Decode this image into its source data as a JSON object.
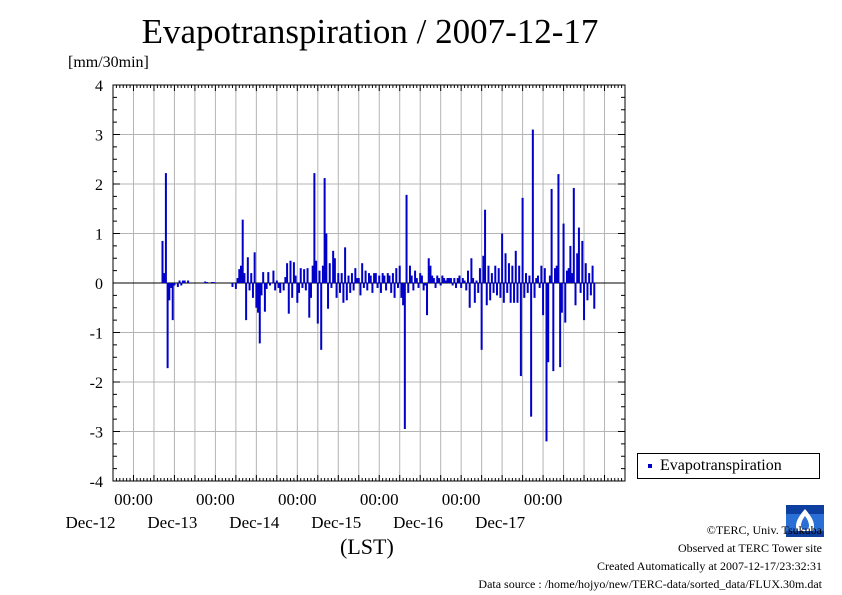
{
  "title": "Evapotranspiration / 2007-12-17",
  "ylabel": "[mm/30min]",
  "xlabel": "(LST)",
  "legend_label": "Evapotranspiration",
  "series_color": "#0000c8",
  "credits": {
    "copyright": "©TERC, Univ. Tsukuba",
    "observed": "Observed at TERC Tower site",
    "created": "Created Automatically at 2007-12-17/23:32:31",
    "source": "Data source : /home/hojyo/new/TERC-data/sorted_data/FLUX.30m.dat"
  },
  "logo_text": "TERC",
  "chart_data": {
    "type": "bar",
    "title": "Evapotranspiration / 2007-12-17",
    "ylabel": "[mm/30min]",
    "xlabel": "(LST)",
    "ylim": [
      -4,
      4
    ],
    "yticks": [
      -4,
      -3,
      -2,
      -1,
      0,
      1,
      2,
      3,
      4
    ],
    "x_start": "2007-12-11T18:00",
    "x_end": "2007-12-17T24:00",
    "x_major_ticks": [
      {
        "time": "2007-12-12T00:00",
        "time_label": "00:00",
        "date_label": "Dec-12"
      },
      {
        "time": "2007-12-13T00:00",
        "time_label": "00:00",
        "date_label": "Dec-13"
      },
      {
        "time": "2007-12-14T00:00",
        "time_label": "00:00",
        "date_label": "Dec-14"
      },
      {
        "time": "2007-12-15T00:00",
        "time_label": "00:00",
        "date_label": "Dec-15"
      },
      {
        "time": "2007-12-16T00:00",
        "time_label": "00:00",
        "date_label": "Dec-16"
      },
      {
        "time": "2007-12-17T00:00",
        "time_label": "00:00",
        "date_label": "Dec-17"
      }
    ],
    "grid": true,
    "legend": "bottom-right",
    "series": [
      {
        "name": "Evapotranspiration",
        "color": "#0000c8",
        "points": [
          [
            "2007-12-12T08:30",
            0.85
          ],
          [
            "2007-12-12T09:00",
            0.2
          ],
          [
            "2007-12-12T09:30",
            2.22
          ],
          [
            "2007-12-12T10:00",
            -1.72
          ],
          [
            "2007-12-12T10:30",
            -0.35
          ],
          [
            "2007-12-12T11:00",
            -0.1
          ],
          [
            "2007-12-12T11:30",
            -0.75
          ],
          [
            "2007-12-12T12:00",
            -0.05
          ],
          [
            "2007-12-12T13:00",
            -0.08
          ],
          [
            "2007-12-12T13:30",
            0.05
          ],
          [
            "2007-12-12T14:00",
            -0.05
          ],
          [
            "2007-12-12T14:30",
            0.05
          ],
          [
            "2007-12-12T15:00",
            0.05
          ],
          [
            "2007-12-12T16:00",
            0.05
          ],
          [
            "2007-12-12T21:00",
            0.03
          ],
          [
            "2007-12-12T21:30",
            0.02
          ],
          [
            "2007-12-12T23:00",
            0.02
          ],
          [
            "2007-12-12T23:30",
            0.02
          ],
          [
            "2007-12-13T05:00",
            -0.08
          ],
          [
            "2007-12-13T06:00",
            -0.12
          ],
          [
            "2007-12-13T06:30",
            0.1
          ],
          [
            "2007-12-13T07:00",
            0.28
          ],
          [
            "2007-12-13T07:30",
            0.35
          ],
          [
            "2007-12-13T08:00",
            1.28
          ],
          [
            "2007-12-13T08:30",
            0.2
          ],
          [
            "2007-12-13T09:00",
            -0.75
          ],
          [
            "2007-12-13T09:30",
            0.52
          ],
          [
            "2007-12-13T10:00",
            -0.15
          ],
          [
            "2007-12-13T10:30",
            0.2
          ],
          [
            "2007-12-13T11:00",
            -0.3
          ],
          [
            "2007-12-13T11:30",
            0.62
          ],
          [
            "2007-12-13T12:00",
            -0.5
          ],
          [
            "2007-12-13T12:30",
            -0.6
          ],
          [
            "2007-12-13T13:00",
            -1.22
          ],
          [
            "2007-12-13T13:30",
            -0.25
          ],
          [
            "2007-12-13T14:00",
            0.22
          ],
          [
            "2007-12-13T14:30",
            -0.58
          ],
          [
            "2007-12-13T15:00",
            -0.12
          ],
          [
            "2007-12-13T15:30",
            0.22
          ],
          [
            "2007-12-13T16:00",
            -0.05
          ],
          [
            "2007-12-13T17:00",
            0.25
          ],
          [
            "2007-12-13T17:30",
            -0.15
          ],
          [
            "2007-12-13T18:00",
            0.05
          ],
          [
            "2007-12-13T18:30",
            -0.1
          ],
          [
            "2007-12-13T19:00",
            -0.2
          ],
          [
            "2007-12-13T20:00",
            -0.15
          ],
          [
            "2007-12-13T20:30",
            0.12
          ],
          [
            "2007-12-13T21:00",
            0.4
          ],
          [
            "2007-12-13T21:30",
            -0.62
          ],
          [
            "2007-12-13T22:00",
            0.45
          ],
          [
            "2007-12-13T22:30",
            -0.3
          ],
          [
            "2007-12-13T23:00",
            0.42
          ],
          [
            "2007-12-13T23:30",
            0.15
          ],
          [
            "2007-12-14T00:00",
            -0.4
          ],
          [
            "2007-12-14T00:30",
            -0.2
          ],
          [
            "2007-12-14T01:00",
            0.3
          ],
          [
            "2007-12-14T01:30",
            -0.1
          ],
          [
            "2007-12-14T02:00",
            0.28
          ],
          [
            "2007-12-14T02:30",
            -0.15
          ],
          [
            "2007-12-14T03:00",
            0.3
          ],
          [
            "2007-12-14T03:30",
            -0.7
          ],
          [
            "2007-12-14T04:00",
            -0.3
          ],
          [
            "2007-12-14T04:30",
            0.35
          ],
          [
            "2007-12-14T05:00",
            2.22
          ],
          [
            "2007-12-14T05:30",
            0.45
          ],
          [
            "2007-12-14T06:00",
            -0.82
          ],
          [
            "2007-12-14T06:30",
            0.25
          ],
          [
            "2007-12-14T07:00",
            -1.35
          ],
          [
            "2007-12-14T07:30",
            0.35
          ],
          [
            "2007-12-14T08:00",
            2.12
          ],
          [
            "2007-12-14T08:30",
            1.0
          ],
          [
            "2007-12-14T09:00",
            -0.52
          ],
          [
            "2007-12-14T09:30",
            0.4
          ],
          [
            "2007-12-14T10:00",
            -0.1
          ],
          [
            "2007-12-14T10:30",
            0.65
          ],
          [
            "2007-12-14T11:00",
            0.5
          ],
          [
            "2007-12-14T11:30",
            -0.3
          ],
          [
            "2007-12-14T12:00",
            0.2
          ],
          [
            "2007-12-14T12:30",
            -0.2
          ],
          [
            "2007-12-14T13:00",
            0.2
          ],
          [
            "2007-12-14T13:30",
            -0.4
          ],
          [
            "2007-12-14T14:00",
            0.72
          ],
          [
            "2007-12-14T14:30",
            -0.35
          ],
          [
            "2007-12-14T15:00",
            0.15
          ],
          [
            "2007-12-14T15:30",
            -0.2
          ],
          [
            "2007-12-14T16:00",
            0.2
          ],
          [
            "2007-12-14T16:30",
            -0.15
          ],
          [
            "2007-12-14T17:00",
            0.3
          ],
          [
            "2007-12-14T17:30",
            0.1
          ],
          [
            "2007-12-14T18:00",
            0.1
          ],
          [
            "2007-12-14T18:30",
            -0.25
          ],
          [
            "2007-12-14T19:00",
            0.4
          ],
          [
            "2007-12-14T19:30",
            -0.1
          ],
          [
            "2007-12-14T20:00",
            0.25
          ],
          [
            "2007-12-14T20:30",
            -0.15
          ],
          [
            "2007-12-14T21:00",
            0.2
          ],
          [
            "2007-12-14T21:30",
            0.15
          ],
          [
            "2007-12-14T22:00",
            -0.2
          ],
          [
            "2007-12-14T22:30",
            0.2
          ],
          [
            "2007-12-14T23:00",
            0.2
          ],
          [
            "2007-12-14T23:30",
            -0.1
          ],
          [
            "2007-12-15T00:00",
            0.15
          ],
          [
            "2007-12-15T00:30",
            -0.2
          ],
          [
            "2007-12-15T01:00",
            0.2
          ],
          [
            "2007-12-15T01:30",
            0.15
          ],
          [
            "2007-12-15T02:00",
            -0.15
          ],
          [
            "2007-12-15T02:30",
            0.2
          ],
          [
            "2007-12-15T03:00",
            0.15
          ],
          [
            "2007-12-15T03:30",
            -0.2
          ],
          [
            "2007-12-15T04:00",
            0.2
          ],
          [
            "2007-12-15T04:30",
            -0.3
          ],
          [
            "2007-12-15T05:00",
            0.3
          ],
          [
            "2007-12-15T05:30",
            -0.1
          ],
          [
            "2007-12-15T06:00",
            0.35
          ],
          [
            "2007-12-15T06:30",
            -0.3
          ],
          [
            "2007-12-15T07:00",
            -0.45
          ],
          [
            "2007-12-15T07:30",
            -2.95
          ],
          [
            "2007-12-15T08:00",
            1.78
          ],
          [
            "2007-12-15T08:30",
            -0.2
          ],
          [
            "2007-12-15T09:00",
            0.35
          ],
          [
            "2007-12-15T09:30",
            0.15
          ],
          [
            "2007-12-15T10:00",
            -0.15
          ],
          [
            "2007-12-15T10:30",
            0.25
          ],
          [
            "2007-12-15T11:00",
            0.1
          ],
          [
            "2007-12-15T11:30",
            -0.1
          ],
          [
            "2007-12-15T12:00",
            0.2
          ],
          [
            "2007-12-15T12:30",
            0.15
          ],
          [
            "2007-12-15T13:00",
            -0.15
          ],
          [
            "2007-12-15T13:30",
            -0.05
          ],
          [
            "2007-12-15T14:00",
            -0.65
          ],
          [
            "2007-12-15T14:30",
            0.5
          ],
          [
            "2007-12-15T15:00",
            0.35
          ],
          [
            "2007-12-15T15:30",
            0.15
          ],
          [
            "2007-12-15T16:00",
            0.1
          ],
          [
            "2007-12-15T16:30",
            -0.1
          ],
          [
            "2007-12-15T17:00",
            0.15
          ],
          [
            "2007-12-15T17:30",
            0.1
          ],
          [
            "2007-12-15T18:00",
            -0.05
          ],
          [
            "2007-12-15T18:30",
            0.15
          ],
          [
            "2007-12-15T19:00",
            0.1
          ],
          [
            "2007-12-15T19:30",
            0.05
          ],
          [
            "2007-12-15T20:00",
            0.1
          ],
          [
            "2007-12-15T20:30",
            0.1
          ],
          [
            "2007-12-15T21:00",
            0.1
          ],
          [
            "2007-12-15T21:30",
            -0.05
          ],
          [
            "2007-12-15T22:00",
            0.1
          ],
          [
            "2007-12-15T22:30",
            -0.1
          ],
          [
            "2007-12-15T23:00",
            0.1
          ],
          [
            "2007-12-15T23:30",
            0.15
          ],
          [
            "2007-12-16T00:00",
            -0.1
          ],
          [
            "2007-12-16T00:30",
            0.1
          ],
          [
            "2007-12-16T01:00",
            0.05
          ],
          [
            "2007-12-16T01:30",
            -0.15
          ],
          [
            "2007-12-16T02:00",
            0.25
          ],
          [
            "2007-12-16T02:30",
            -0.5
          ],
          [
            "2007-12-16T03:00",
            0.5
          ],
          [
            "2007-12-16T03:30",
            0.1
          ],
          [
            "2007-12-16T04:00",
            -0.4
          ],
          [
            "2007-12-16T04:30",
            0.05
          ],
          [
            "2007-12-16T05:00",
            -0.2
          ],
          [
            "2007-12-16T05:30",
            0.3
          ],
          [
            "2007-12-16T06:00",
            -1.35
          ],
          [
            "2007-12-16T06:30",
            0.55
          ],
          [
            "2007-12-16T07:00",
            1.48
          ],
          [
            "2007-12-16T07:30",
            -0.45
          ],
          [
            "2007-12-16T08:00",
            0.35
          ],
          [
            "2007-12-16T08:30",
            -0.35
          ],
          [
            "2007-12-16T09:00",
            0.2
          ],
          [
            "2007-12-16T09:30",
            -0.2
          ],
          [
            "2007-12-16T10:00",
            0.35
          ],
          [
            "2007-12-16T10:30",
            -0.25
          ],
          [
            "2007-12-16T11:00",
            0.3
          ],
          [
            "2007-12-16T11:30",
            -0.3
          ],
          [
            "2007-12-16T12:00",
            1.0
          ],
          [
            "2007-12-16T12:30",
            -0.4
          ],
          [
            "2007-12-16T13:00",
            0.6
          ],
          [
            "2007-12-16T13:30",
            -0.2
          ],
          [
            "2007-12-16T14:00",
            0.4
          ],
          [
            "2007-12-16T14:30",
            -0.4
          ],
          [
            "2007-12-16T15:00",
            0.35
          ],
          [
            "2007-12-16T15:30",
            -0.4
          ],
          [
            "2007-12-16T16:00",
            0.65
          ],
          [
            "2007-12-16T16:30",
            -0.4
          ],
          [
            "2007-12-16T17:00",
            0.35
          ],
          [
            "2007-12-16T17:30",
            -1.88
          ],
          [
            "2007-12-16T18:00",
            1.72
          ],
          [
            "2007-12-16T18:30",
            -0.3
          ],
          [
            "2007-12-16T19:00",
            0.2
          ],
          [
            "2007-12-16T19:30",
            -0.2
          ],
          [
            "2007-12-16T20:00",
            0.15
          ],
          [
            "2007-12-16T20:30",
            -2.7
          ],
          [
            "2007-12-16T21:00",
            3.1
          ],
          [
            "2007-12-16T21:30",
            -0.3
          ],
          [
            "2007-12-16T22:00",
            0.1
          ],
          [
            "2007-12-16T22:30",
            0.15
          ],
          [
            "2007-12-16T23:00",
            -0.1
          ],
          [
            "2007-12-16T23:30",
            0.35
          ],
          [
            "2007-12-17T00:00",
            -0.65
          ],
          [
            "2007-12-17T00:30",
            0.3
          ],
          [
            "2007-12-17T01:00",
            -3.2
          ],
          [
            "2007-12-17T01:30",
            -1.6
          ],
          [
            "2007-12-17T02:00",
            0.15
          ],
          [
            "2007-12-17T02:30",
            1.9
          ],
          [
            "2007-12-17T03:00",
            -1.78
          ],
          [
            "2007-12-17T03:30",
            0.3
          ],
          [
            "2007-12-17T04:00",
            0.35
          ],
          [
            "2007-12-17T04:30",
            2.2
          ],
          [
            "2007-12-17T05:00",
            -1.7
          ],
          [
            "2007-12-17T05:30",
            -0.6
          ],
          [
            "2007-12-17T06:00",
            1.2
          ],
          [
            "2007-12-17T06:30",
            -0.8
          ],
          [
            "2007-12-17T07:00",
            0.25
          ],
          [
            "2007-12-17T07:30",
            0.3
          ],
          [
            "2007-12-17T08:00",
            0.75
          ],
          [
            "2007-12-17T08:30",
            0.2
          ],
          [
            "2007-12-17T09:00",
            1.92
          ],
          [
            "2007-12-17T09:30",
            -0.45
          ],
          [
            "2007-12-17T10:00",
            0.6
          ],
          [
            "2007-12-17T10:30",
            1.12
          ],
          [
            "2007-12-17T11:00",
            -0.2
          ],
          [
            "2007-12-17T11:30",
            0.85
          ],
          [
            "2007-12-17T12:00",
            -0.75
          ],
          [
            "2007-12-17T12:30",
            0.4
          ],
          [
            "2007-12-17T13:00",
            -0.35
          ],
          [
            "2007-12-17T13:30",
            0.2
          ],
          [
            "2007-12-17T14:00",
            -0.25
          ],
          [
            "2007-12-17T14:30",
            0.35
          ],
          [
            "2007-12-17T15:00",
            -0.52
          ]
        ]
      }
    ]
  }
}
